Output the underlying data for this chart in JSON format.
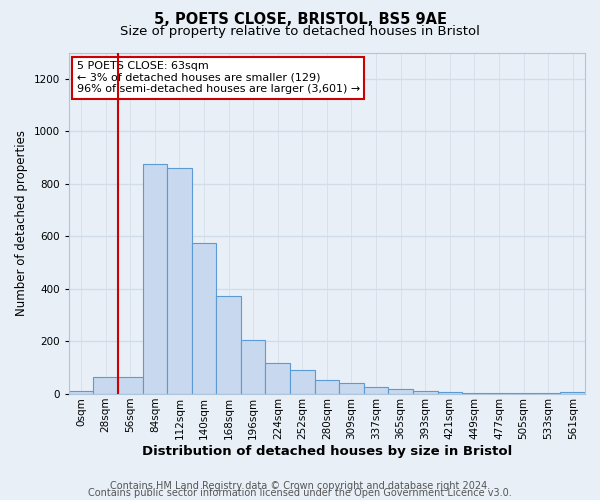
{
  "title1": "5, POETS CLOSE, BRISTOL, BS5 9AE",
  "title2": "Size of property relative to detached houses in Bristol",
  "xlabel": "Distribution of detached houses by size in Bristol",
  "ylabel": "Number of detached properties",
  "bin_labels": [
    "0sqm",
    "28sqm",
    "56sqm",
    "84sqm",
    "112sqm",
    "140sqm",
    "168sqm",
    "196sqm",
    "224sqm",
    "252sqm",
    "280sqm",
    "309sqm",
    "337sqm",
    "365sqm",
    "393sqm",
    "421sqm",
    "449sqm",
    "477sqm",
    "505sqm",
    "533sqm",
    "561sqm"
  ],
  "bar_heights": [
    10,
    65,
    65,
    875,
    860,
    575,
    375,
    205,
    120,
    90,
    55,
    42,
    27,
    18,
    10,
    8,
    5,
    4,
    4,
    4,
    8
  ],
  "bar_color": "#c8d9ef",
  "bar_edge_color": "#5a9bd5",
  "vline_x": 2,
  "vline_color": "#cc0000",
  "ylim": [
    0,
    1300
  ],
  "yticks": [
    0,
    200,
    400,
    600,
    800,
    1000,
    1200
  ],
  "annotation_text": "5 POETS CLOSE: 63sqm\n← 3% of detached houses are smaller (129)\n96% of semi-detached houses are larger (3,601) →",
  "annotation_box_color": "#ffffff",
  "annotation_box_edge": "#cc0000",
  "footer1": "Contains HM Land Registry data © Crown copyright and database right 2024.",
  "footer2": "Contains public sector information licensed under the Open Government Licence v3.0.",
  "bg_color": "#e8eff7",
  "grid_color": "#d0dce8",
  "title1_fontsize": 10.5,
  "title2_fontsize": 9.5,
  "xlabel_fontsize": 9.5,
  "ylabel_fontsize": 8.5,
  "tick_fontsize": 7.5,
  "footer_fontsize": 7,
  "ann_fontsize": 8
}
